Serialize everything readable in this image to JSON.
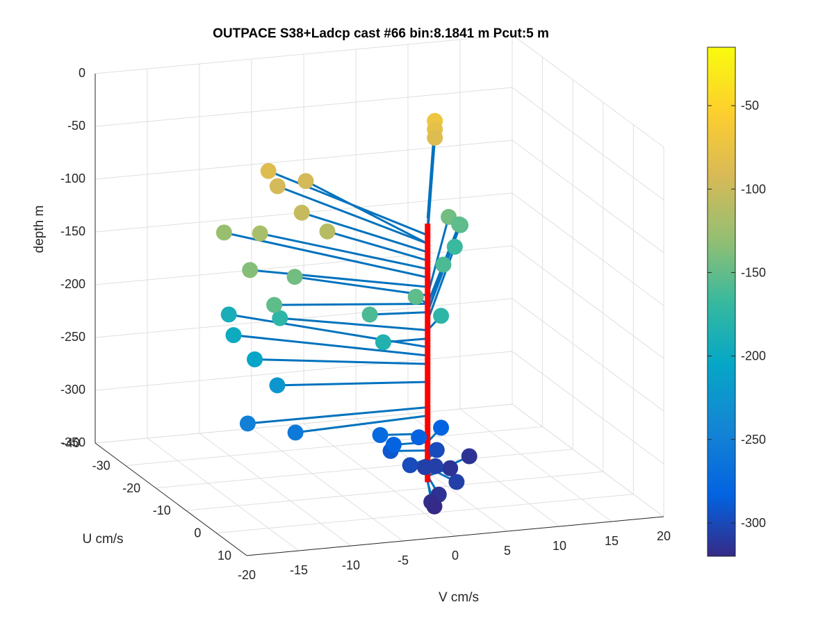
{
  "chart_data": {
    "type": "scatter",
    "title": "OUTPACE S38+Ladcp cast #66 bin:8.1841 m  Pcut:5 m",
    "xlabel": "V cm/s",
    "ylabel": "U cm/s",
    "zlabel": "depth m",
    "xlim": [
      -20,
      20
    ],
    "ylim": [
      -40,
      10
    ],
    "zlim": [
      -350,
      0
    ],
    "x_ticks": [
      "-20",
      "-15",
      "-10",
      "-5",
      "0",
      "5",
      "10",
      "15",
      "20"
    ],
    "y_ticks": [
      "-40",
      "-30",
      "-20",
      "-10",
      "0",
      "10"
    ],
    "z_ticks": [
      "0",
      "-50",
      "-100",
      "-150",
      "-200",
      "-250",
      "-300",
      "-350"
    ],
    "colorbar": {
      "ticks": [
        "-50",
        "-100",
        "-150",
        "-200",
        "-250",
        "-300"
      ],
      "range": [
        -320,
        -15
      ],
      "colormap": "parula"
    },
    "grid": true,
    "line_color": "#0072bd",
    "mean_line_color": "#ff0000",
    "mean_line": {
      "v": 0.2,
      "u": 0.2,
      "z_top": -75,
      "z_bottom": -320
    },
    "points": [
      {
        "depth": -70,
        "v": 12,
        "u": -38
      },
      {
        "depth": -78,
        "v": 12,
        "u": -38
      },
      {
        "depth": -86,
        "v": 12,
        "u": -38
      },
      {
        "depth": -86,
        "v": -6,
        "u": -31
      },
      {
        "depth": -94,
        "v": -6,
        "u": -28
      },
      {
        "depth": -94,
        "v": -3,
        "u": -29
      },
      {
        "depth": -102,
        "v": -6,
        "u": -20
      },
      {
        "depth": -110,
        "v": -5,
        "u": -15
      },
      {
        "depth": -118,
        "v": -10,
        "u": -20
      },
      {
        "depth": -126,
        "v": -12,
        "u": -25
      },
      {
        "depth": -135,
        "v": -13,
        "u": -13
      },
      {
        "depth": -143,
        "v": -9,
        "u": -12
      },
      {
        "depth": -143,
        "v": 11,
        "u": -30
      },
      {
        "depth": -151,
        "v": 0,
        "u": -3
      },
      {
        "depth": -151,
        "v": -13,
        "u": -5
      },
      {
        "depth": -151,
        "v": 12,
        "u": -30
      },
      {
        "depth": -159,
        "v": 13,
        "u": -33
      },
      {
        "depth": -159,
        "v": -5,
        "u": -1
      },
      {
        "depth": -159,
        "v": 7,
        "u": -18
      },
      {
        "depth": -167,
        "v": 11,
        "u": -28
      },
      {
        "depth": -176,
        "v": -11,
        "u": -10
      },
      {
        "depth": -176,
        "v": 3,
        "u": -5
      },
      {
        "depth": -184,
        "v": -4,
        "u": 0
      },
      {
        "depth": -192,
        "v": -13,
        "u": -20
      },
      {
        "depth": -200,
        "v": -14,
        "u": -15
      },
      {
        "depth": -208,
        "v": -14,
        "u": -8
      },
      {
        "depth": -225,
        "v": -13,
        "u": -4
      },
      {
        "depth": -249,
        "v": -17,
        "u": 0
      },
      {
        "depth": -257,
        "v": -13,
        "u": 2
      },
      {
        "depth": -274,
        "v": -4,
        "u": -1
      },
      {
        "depth": -282,
        "v": 0,
        "u": -2
      },
      {
        "depth": -282,
        "v": 3,
        "u": -5
      },
      {
        "depth": -282,
        "v": -3,
        "u": 0
      },
      {
        "depth": -290,
        "v": -3,
        "u": -1
      },
      {
        "depth": -298,
        "v": 2,
        "u": -3
      },
      {
        "depth": -298,
        "v": -2,
        "u": 2
      },
      {
        "depth": -306,
        "v": 0,
        "u": 0
      },
      {
        "depth": -306,
        "v": 1,
        "u": 0
      },
      {
        "depth": -314,
        "v": 6,
        "u": -6
      },
      {
        "depth": -314,
        "v": 3,
        "u": -2
      },
      {
        "depth": -306,
        "v": 1,
        "u": 7
      },
      {
        "depth": -314,
        "v": -1,
        "u": 8
      },
      {
        "depth": -318,
        "v": -2,
        "u": 9
      },
      {
        "depth": -320,
        "v": -2,
        "u": 10
      }
    ]
  }
}
